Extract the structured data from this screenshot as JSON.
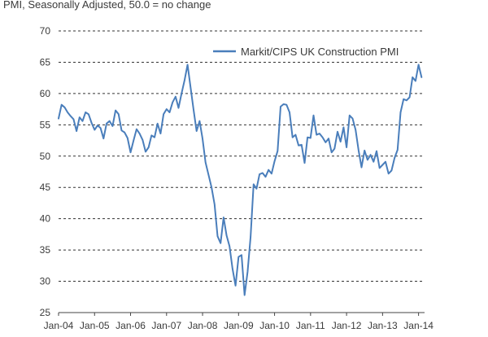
{
  "chart_data": {
    "type": "line",
    "subtitle": "PMI, Seasonally Adjusted, 50.0 = no change",
    "ylim": [
      25,
      70
    ],
    "yticks": [
      25,
      30,
      35,
      40,
      45,
      50,
      55,
      60,
      65,
      70
    ],
    "xlim": [
      "2004-01",
      "2014-03"
    ],
    "xticks": [
      "Jan-04",
      "Jan-05",
      "Jan-06",
      "Jan-07",
      "Jan-08",
      "Jan-09",
      "Jan-10",
      "Jan-11",
      "Jan-12",
      "Jan-13",
      "Jan-14"
    ],
    "grid": "horizontal dashed",
    "legend_position": "top-right",
    "series": [
      {
        "name": "Markit/CIPS UK Construction PMI",
        "color": "#4a7ebb",
        "x": [
          "2004-01",
          "2004-02",
          "2004-03",
          "2004-04",
          "2004-05",
          "2004-06",
          "2004-07",
          "2004-08",
          "2004-09",
          "2004-10",
          "2004-11",
          "2004-12",
          "2005-01",
          "2005-02",
          "2005-03",
          "2005-04",
          "2005-05",
          "2005-06",
          "2005-07",
          "2005-08",
          "2005-09",
          "2005-10",
          "2005-11",
          "2005-12",
          "2006-01",
          "2006-02",
          "2006-03",
          "2006-04",
          "2006-05",
          "2006-06",
          "2006-07",
          "2006-08",
          "2006-09",
          "2006-10",
          "2006-11",
          "2006-12",
          "2007-01",
          "2007-02",
          "2007-03",
          "2007-04",
          "2007-05",
          "2007-06",
          "2007-07",
          "2007-08",
          "2007-09",
          "2007-10",
          "2007-11",
          "2007-12",
          "2008-01",
          "2008-02",
          "2008-03",
          "2008-04",
          "2008-05",
          "2008-06",
          "2008-07",
          "2008-08",
          "2008-09",
          "2008-10",
          "2008-11",
          "2008-12",
          "2009-01",
          "2009-02",
          "2009-03",
          "2009-04",
          "2009-05",
          "2009-06",
          "2009-07",
          "2009-08",
          "2009-09",
          "2009-10",
          "2009-11",
          "2009-12",
          "2010-01",
          "2010-02",
          "2010-03",
          "2010-04",
          "2010-05",
          "2010-06",
          "2010-07",
          "2010-08",
          "2010-09",
          "2010-10",
          "2010-11",
          "2010-12",
          "2011-01",
          "2011-02",
          "2011-03",
          "2011-04",
          "2011-05",
          "2011-06",
          "2011-07",
          "2011-08",
          "2011-09",
          "2011-10",
          "2011-11",
          "2011-12",
          "2012-01",
          "2012-02",
          "2012-03",
          "2012-04",
          "2012-05",
          "2012-06",
          "2012-07",
          "2012-08",
          "2012-09",
          "2012-10",
          "2012-11",
          "2012-12",
          "2013-01",
          "2013-02",
          "2013-03",
          "2013-04",
          "2013-05",
          "2013-06",
          "2013-07",
          "2013-08",
          "2013-09",
          "2013-10",
          "2013-11",
          "2013-12",
          "2014-01",
          "2014-02"
        ],
        "values": [
          56.0,
          58.2,
          57.8,
          57.0,
          56.4,
          55.9,
          54.0,
          56.2,
          55.6,
          57.0,
          56.7,
          55.3,
          54.2,
          54.9,
          54.5,
          52.8,
          55.2,
          55.6,
          54.8,
          57.3,
          56.7,
          54.1,
          53.8,
          52.9,
          50.6,
          52.5,
          54.3,
          53.6,
          52.6,
          50.7,
          51.4,
          53.3,
          53.0,
          55.2,
          53.6,
          56.7,
          57.5,
          57.0,
          58.6,
          59.5,
          57.7,
          60.0,
          62.1,
          64.6,
          61.0,
          57.4,
          54.0,
          55.6,
          52.8,
          49.0,
          47.0,
          45.0,
          42.3,
          37.2,
          36.1,
          40.2,
          37.3,
          35.6,
          32.0,
          29.3,
          33.9,
          34.2,
          27.8,
          31.5,
          37.1,
          45.5,
          44.8,
          47.1,
          47.3,
          46.7,
          47.8,
          47.2,
          49.2,
          50.8,
          57.9,
          58.3,
          58.2,
          57.0,
          53.0,
          53.4,
          51.7,
          51.8,
          48.9,
          53.0,
          52.9,
          56.5,
          53.4,
          53.6,
          53.0,
          52.2,
          52.8,
          50.6,
          51.2,
          53.9,
          52.3,
          54.6,
          51.4,
          56.5,
          56.0,
          54.2,
          50.9,
          48.2,
          50.9,
          49.4,
          50.2,
          49.1,
          50.8,
          48.1,
          48.6,
          49.1,
          47.2,
          47.7,
          49.7,
          51.0,
          57.0,
          59.1,
          58.9,
          59.4,
          62.6,
          62.0,
          64.6,
          62.6
        ]
      }
    ]
  }
}
